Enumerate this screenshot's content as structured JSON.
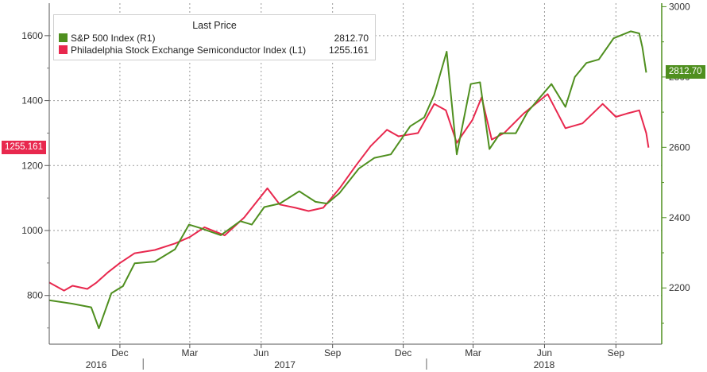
{
  "chart_data": {
    "type": "line",
    "title": "",
    "legend_title": "Last Price",
    "legend_position": "top-left",
    "grid": true,
    "x_tick_labels": [
      "Dec",
      "Mar",
      "Jun",
      "Sep",
      "Dec",
      "Mar",
      "Jun",
      "Sep"
    ],
    "x_ticks": [
      "2016-12",
      "2017-03",
      "2017-06",
      "2017-09",
      "2017-12",
      "2018-03",
      "2018-06",
      "2018-09"
    ],
    "year_labels": [
      "2016",
      "2017",
      "2018"
    ],
    "xlim": [
      "2016-09",
      "2018-10-30"
    ],
    "left_axis": {
      "ticks": [
        800,
        1000,
        1200,
        1400,
        1600
      ],
      "ylim": [
        650,
        1700
      ]
    },
    "right_axis": {
      "ticks": [
        2200,
        2400,
        2600,
        2800,
        3000
      ],
      "ylim": [
        2040,
        3010
      ]
    },
    "series": [
      {
        "name": "S&P 500 Index",
        "axis": "R1",
        "label": "S&P 500 Index  (R1)",
        "last_value": "2812.70",
        "color": "#4f8f1f",
        "points": [
          [
            "2016-09",
            2165
          ],
          [
            "2016-10",
            2155
          ],
          [
            "2016-10-25",
            2145
          ],
          [
            "2016-11-04",
            2085
          ],
          [
            "2016-11-20",
            2185
          ],
          [
            "2016-12-05",
            2205
          ],
          [
            "2016-12-20",
            2270
          ],
          [
            "2017-01-15",
            2275
          ],
          [
            "2017-02-10",
            2310
          ],
          [
            "2017-02-28",
            2380
          ],
          [
            "2017-03-15",
            2370
          ],
          [
            "2017-04-10",
            2350
          ],
          [
            "2017-05-05",
            2390
          ],
          [
            "2017-05-20",
            2380
          ],
          [
            "2017-06-05",
            2430
          ],
          [
            "2017-06-25",
            2440
          ],
          [
            "2017-07-20",
            2475
          ],
          [
            "2017-08-10",
            2445
          ],
          [
            "2017-08-25",
            2440
          ],
          [
            "2017-09-10",
            2470
          ],
          [
            "2017-10-05",
            2540
          ],
          [
            "2017-10-25",
            2570
          ],
          [
            "2017-11-15",
            2580
          ],
          [
            "2017-12-10",
            2660
          ],
          [
            "2017-12-28",
            2685
          ],
          [
            "2018-01-10",
            2750
          ],
          [
            "2018-01-26",
            2872
          ],
          [
            "2018-02-08",
            2580
          ],
          [
            "2018-02-26",
            2780
          ],
          [
            "2018-03-10",
            2785
          ],
          [
            "2018-03-22",
            2595
          ],
          [
            "2018-04-05",
            2640
          ],
          [
            "2018-04-25",
            2640
          ],
          [
            "2018-05-10",
            2700
          ],
          [
            "2018-06-10",
            2780
          ],
          [
            "2018-06-28",
            2715
          ],
          [
            "2018-07-10",
            2800
          ],
          [
            "2018-07-25",
            2840
          ],
          [
            "2018-08-10",
            2850
          ],
          [
            "2018-08-29",
            2910
          ],
          [
            "2018-09-20",
            2930
          ],
          [
            "2018-10-01",
            2924
          ],
          [
            "2018-10-05",
            2885
          ],
          [
            "2018-10-10",
            2812.7
          ]
        ]
      },
      {
        "name": "Philadelphia Stock Exchange Semiconductor Index",
        "axis": "L1",
        "label": "Philadelphia Stock Exchange Semiconductor Index  (L1)",
        "last_value": "1255.161",
        "color": "#e8284e",
        "points": [
          [
            "2016-09",
            840
          ],
          [
            "2016-09-20",
            815
          ],
          [
            "2016-10",
            830
          ],
          [
            "2016-10-20",
            820
          ],
          [
            "2016-11",
            840
          ],
          [
            "2016-11-15",
            870
          ],
          [
            "2016-12",
            900
          ],
          [
            "2016-12-20",
            930
          ],
          [
            "2017-01-15",
            940
          ],
          [
            "2017-02-10",
            960
          ],
          [
            "2017-03-01",
            980
          ],
          [
            "2017-03-20",
            1010
          ],
          [
            "2017-04-15",
            985
          ],
          [
            "2017-05-10",
            1040
          ],
          [
            "2017-06-09",
            1130
          ],
          [
            "2017-06-25",
            1080
          ],
          [
            "2017-07-15",
            1070
          ],
          [
            "2017-08-01",
            1060
          ],
          [
            "2017-08-20",
            1070
          ],
          [
            "2017-09-10",
            1130
          ],
          [
            "2017-10-01",
            1200
          ],
          [
            "2017-10-20",
            1260
          ],
          [
            "2017-11-10",
            1310
          ],
          [
            "2017-11-25",
            1290
          ],
          [
            "2017-12-20",
            1300
          ],
          [
            "2018-01-10",
            1390
          ],
          [
            "2018-01-25",
            1370
          ],
          [
            "2018-02-08",
            1270
          ],
          [
            "2018-02-28",
            1340
          ],
          [
            "2018-03-12",
            1410
          ],
          [
            "2018-03-25",
            1280
          ],
          [
            "2018-04-10",
            1300
          ],
          [
            "2018-05-05",
            1360
          ],
          [
            "2018-06-05",
            1420
          ],
          [
            "2018-06-28",
            1315
          ],
          [
            "2018-07-20",
            1330
          ],
          [
            "2018-08-15",
            1390
          ],
          [
            "2018-09-01",
            1350
          ],
          [
            "2018-09-15",
            1360
          ],
          [
            "2018-10-01",
            1370
          ],
          [
            "2018-10-10",
            1300
          ],
          [
            "2018-10-13",
            1255.161
          ]
        ]
      }
    ]
  }
}
